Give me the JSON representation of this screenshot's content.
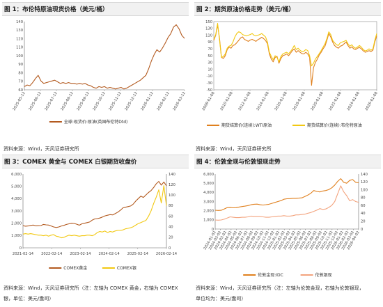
{
  "colors": {
    "brown": "#b35a1f",
    "gold": "#f2c811",
    "orange": "#e0801e",
    "salmon": "#f3a37d",
    "axis": "#666666"
  },
  "charts": [
    {
      "title": "图 1：布伦特原油现货价格（美元/桶）",
      "source": "资料来源：Wind，天风证券研究所",
      "chart_data": {
        "type": "line",
        "y_ticks": [
          "140",
          "130",
          "120",
          "110",
          "100",
          "90",
          "80",
          "70",
          "60"
        ],
        "ylim": [
          60,
          145
        ],
        "x_ticks": [
          "2025-05-12",
          "2025-06-12",
          "2025-07-12",
          "2025-08-12",
          "2025-09-12",
          "2025-10-12",
          "2025-11-12",
          "2025-12-12",
          "2026-01-12",
          "2026-02-12",
          "2026-03-12"
        ],
        "legend": [
          "全球:现货价:原油(英国布伦特Dtd)"
        ],
        "series": [
          {
            "name": "全球:现货价:原油(英国布伦特Dtd)",
            "color": "brown",
            "values": [
              64,
              66,
              65,
              69,
              74,
              78,
              71,
              68,
              69,
              70,
              71,
              72,
              70,
              68,
              69,
              68,
              69,
              68,
              68,
              67,
              68,
              67,
              68,
              66,
              65,
              63,
              62,
              64,
              63,
              64,
              62,
              63,
              62,
              61,
              62,
              63,
              61,
              62,
              64,
              66,
              68,
              70,
              72,
              75,
              78,
              86,
              96,
              104,
              110,
              107,
              112,
              118,
              125,
              130,
              138,
              141,
              136,
              128,
              124
            ]
          }
        ]
      }
    },
    {
      "title": "图 2：期货原油价格走势（美元/桶）",
      "source": "资料来源：Wind，天风证券研究所",
      "chart_data": {
        "type": "line",
        "y_ticks": [
          "150",
          "130",
          "110",
          "90",
          "70",
          "50",
          "30",
          "10",
          "-10",
          "-30",
          "-50"
        ],
        "ylim": [
          -50,
          150
        ],
        "x_ticks": [
          "2008-01-08",
          "2010-01-08",
          "2012-01-08",
          "2014-01-08",
          "2016-01-08",
          "2018-01-08",
          "2020-01-08",
          "2022-01-08",
          "2024-01-08",
          "2026-01-08"
        ],
        "legend": [
          "期货结算价(连续):WTI原油",
          "期货结算价(连续):布伦特原油"
        ],
        "series": [
          {
            "name": "期货结算价(连续):WTI原油",
            "color": "orange",
            "values": [
              95,
              110,
              140,
              100,
              45,
              42,
              50,
              68,
              75,
              72,
              80,
              82,
              88,
              95,
              102,
              105,
              98,
              95,
              92,
              96,
              98,
              95,
              92,
              97,
              100,
              104,
              100,
              95,
              85,
              55,
              40,
              32,
              45,
              48,
              28,
              42,
              50,
              52,
              55,
              50,
              57,
              65,
              70,
              60,
              65,
              60,
              56,
              55,
              60,
              55,
              45,
              -37,
              15,
              30,
              40,
              52,
              60,
              70,
              78,
              95,
              115,
              105,
              90,
              80,
              75,
              72,
              78,
              80,
              85,
              90,
              80,
              72,
              76,
              70,
              68,
              72,
              74,
              70,
              64,
              60,
              62,
              65,
              62,
              66,
              90,
              108
            ]
          },
          {
            "name": "期货结算价(连续):布伦特原油",
            "color": "gold",
            "values": [
              98,
              112,
              145,
              95,
              45,
              48,
              55,
              72,
              78,
              80,
              90,
              105,
              115,
              120,
              118,
              112,
              110,
              108,
              110,
              112,
              115,
              110,
              108,
              110,
              112,
              115,
              110,
              105,
              90,
              60,
              48,
              38,
              50,
              45,
              32,
              48,
              55,
              58,
              60,
              56,
              62,
              70,
              80,
              68,
              72,
              66,
              62,
              63,
              68,
              65,
              50,
              20,
              28,
              40,
              48,
              56,
              65,
              75,
              85,
              100,
              120,
              112,
              95,
              88,
              82,
              80,
              88,
              90,
              92,
              95,
              85,
              78,
              82,
              75,
              72,
              76,
              80,
              75,
              68,
              64,
              66,
              70,
              66,
              70,
              95,
              115
            ]
          }
        ]
      }
    },
    {
      "title": "图 3：COMEX 黄金与 COMEX 白银期货收盘价",
      "source": "资料来源：Wind，天风证券研究所（注：左轴为 COMEX 黄金，右轴为 COMEX",
      "source2": "银，单位：美元/盎司）",
      "chart_data": {
        "type": "line",
        "y_ticks": [
          "6,000",
          "5,000",
          "4,000",
          "3,000",
          "2,000",
          "1,000",
          "0"
        ],
        "y2_ticks": [
          "140",
          "120",
          "100",
          "80",
          "60",
          "40",
          "20",
          "0"
        ],
        "ylim": [
          0,
          6000
        ],
        "y2lim": [
          0,
          140
        ],
        "x_ticks": [
          "2021-02-14",
          "2022-02-14",
          "2023-02-14",
          "2024-02-14",
          "2025-02-14",
          "2026-02-14"
        ],
        "legend": [
          "COMEX黄金",
          "COMEX银"
        ],
        "series": [
          {
            "name": "COMEX黄金",
            "color": "brown",
            "axis": "left",
            "values": [
              1800,
              1760,
              1780,
              1820,
              1850,
              1790,
              1800,
              1810,
              1900,
              1870,
              1850,
              1780,
              1700,
              1650,
              1700,
              1780,
              1830,
              1900,
              1950,
              2000,
              1980,
              1920,
              1840,
              1950,
              2000,
              2050,
              2100,
              2250,
              2350,
              2380,
              2420,
              2500,
              2600,
              2650,
              2700,
              2680,
              2780,
              2900,
              3050,
              3250,
              3300,
              3350,
              3400,
              3550,
              3800,
              4000,
              4200,
              4100,
              4300,
              4500,
              4650,
              4900,
              5200,
              5400,
              5100,
              5350,
              5050
            ]
          },
          {
            "name": "COMEX银",
            "color": "gold",
            "axis": "right",
            "values": [
              26,
              27,
              26,
              27,
              26,
              25,
              24,
              24,
              23,
              24,
              22,
              24,
              25,
              22,
              21,
              19,
              20,
              22,
              24,
              23,
              24,
              23,
              22,
              23,
              23,
              24,
              24,
              23,
              25,
              29,
              31,
              30,
              32,
              29,
              31,
              30,
              32,
              33,
              33,
              34,
              36,
              37,
              38,
              40,
              43,
              46,
              48,
              50,
              52,
              60,
              70,
              84,
              96,
              110,
              85,
              118,
              80
            ]
          }
        ]
      }
    },
    {
      "title": "图 4：伦敦金现与伦敦银现走势",
      "source": "资料来源：Wind，天风证券研究所（注：左轴为伦敦金现，右轴为伦敦银现，",
      "source2": "单位均为：美元/盎司）",
      "chart_data": {
        "type": "line",
        "y_ticks": [
          "6,000",
          "5,000",
          "4,000",
          "3,000",
          "2,000",
          "1,000",
          "0"
        ],
        "y2_ticks": [
          "140",
          "120",
          "100",
          "80",
          "60",
          "40",
          "20",
          "0"
        ],
        "ylim": [
          0,
          6000
        ],
        "y2lim": [
          0,
          140
        ],
        "x_ticks": [
          "2024-01-02",
          "2024-02-02",
          "2024-03-02",
          "2024-04-02",
          "2024-05-02",
          "2024-06-02",
          "2024-07-02",
          "2024-08-02",
          "2024-09-02",
          "2024-10-02",
          "2024-11-02",
          "2024-12-02",
          "2025-01-02",
          "2025-02-02",
          "2025-03-02",
          "2025-04-02",
          "2025-05-02",
          "2025-06-02",
          "2025-07-02",
          "2025-08-02",
          "2025-09-02",
          "2025-10-02",
          "2025-11-02",
          "2025-12-02",
          "2026-01-02",
          "2026-02-02",
          "2026-03-02",
          "2026-04-02"
        ],
        "legend": [
          "伦敦金现:IDC",
          "伦敦银现"
        ],
        "series": [
          {
            "name": "伦敦金现:IDC",
            "color": "orange",
            "axis": "left",
            "values": [
              2050,
              2030,
              2040,
              2180,
              2330,
              2350,
              2320,
              2330,
              2400,
              2450,
              2500,
              2560,
              2650,
              2700,
              2720,
              2650,
              2620,
              2660,
              2700,
              2800,
              2900,
              3000,
              3100,
              3250,
              3300,
              3320,
              3350,
              3350,
              3370,
              3400,
              3550,
              3700,
              3900,
              4200,
              4100,
              4050,
              4150,
              4200,
              4300,
              4500,
              4800,
              5200,
              5500,
              5100,
              5000,
              5300,
              5400,
              5100,
              5050
            ]
          },
          {
            "name": "伦敦银现",
            "color": "salmon",
            "axis": "right",
            "values": [
              23,
              22.5,
              23,
              25,
              28,
              31,
              30,
              29,
              29,
              30,
              30,
              31,
              33,
              32,
              32,
              32,
              31,
              30,
              30,
              31,
              32,
              33,
              33,
              34,
              33,
              33,
              34,
              36,
              36,
              37,
              38,
              40,
              42,
              45,
              48,
              52,
              50,
              51,
              55,
              60,
              70,
              90,
              110,
              95,
              85,
              72,
              75,
              70,
              68
            ]
          }
        ]
      }
    }
  ]
}
